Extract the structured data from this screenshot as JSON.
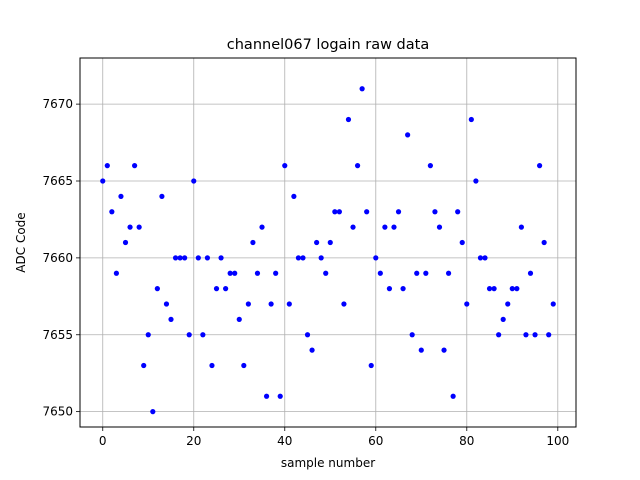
{
  "chart_data": {
    "type": "scatter",
    "title": "channel067 logain raw data",
    "xlabel": "sample number",
    "ylabel": "ADC Code",
    "xlim": [
      -5,
      104
    ],
    "ylim": [
      7649,
      7673
    ],
    "xticks": [
      0,
      20,
      40,
      60,
      80,
      100
    ],
    "yticks": [
      7650,
      7655,
      7660,
      7665,
      7670
    ],
    "grid": true,
    "marker_color": "#0000ff",
    "series": [
      {
        "x": [
          0,
          1,
          2,
          3,
          4,
          5,
          6,
          7,
          8,
          9,
          10,
          11,
          12,
          13,
          14,
          15,
          16,
          17,
          18,
          19,
          20,
          21,
          22,
          23,
          24,
          25,
          26,
          27,
          28,
          29,
          30,
          31,
          32,
          33,
          34,
          35,
          36,
          37,
          38,
          39,
          40,
          41,
          42,
          43,
          44,
          45,
          46,
          47,
          48,
          49,
          50,
          51,
          52,
          53,
          54,
          55,
          56,
          57,
          58,
          59,
          60,
          61,
          62,
          63,
          64,
          65,
          66,
          67,
          68,
          69,
          70,
          71,
          72,
          73,
          74,
          75,
          76,
          77,
          78,
          79,
          80,
          81,
          82,
          83,
          84,
          85,
          86,
          87,
          88,
          89,
          90,
          91,
          92,
          93,
          94,
          95,
          96,
          97,
          98,
          99
        ],
        "y": [
          7665,
          7666,
          7663,
          7659,
          7664,
          7661,
          7662,
          7666,
          7662,
          7653,
          7655,
          7650,
          7658,
          7664,
          7657,
          7656,
          7660,
          7660,
          7660,
          7655,
          7665,
          7660,
          7655,
          7660,
          7653,
          7658,
          7660,
          7658,
          7659,
          7659,
          7656,
          7653,
          7657,
          7661,
          7659,
          7662,
          7651,
          7657,
          7659,
          7651,
          7666,
          7657,
          7664,
          7660,
          7660,
          7655,
          7654,
          7661,
          7660,
          7659,
          7661,
          7663,
          7663,
          7657,
          7669,
          7662,
          7666,
          7671,
          7663,
          7653,
          7660,
          7659,
          7662,
          7658,
          7662,
          7663,
          7658,
          7668,
          7655,
          7659,
          7654,
          7659,
          7666,
          7663,
          7662,
          7654,
          7659,
          7651,
          7663,
          7661,
          7657,
          7669,
          7665,
          7660,
          7660,
          7658,
          7658,
          7655,
          7656,
          7657,
          7658,
          7658,
          7662,
          7655,
          7659,
          7655,
          7666,
          7661,
          7655,
          7657
        ]
      }
    ]
  }
}
